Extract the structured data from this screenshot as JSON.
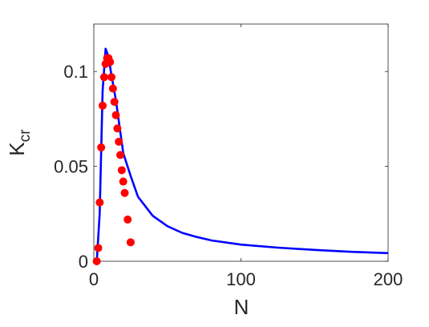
{
  "chart_data": {
    "type": "line",
    "xlabel": "N",
    "ylabel": {
      "main": "K",
      "subscript": "cr"
    },
    "xlim": [
      0,
      200
    ],
    "ylim": [
      0,
      0.125
    ],
    "x_ticks": [
      0,
      100,
      200
    ],
    "x_tick_labels": [
      "0",
      "100",
      "200"
    ],
    "y_ticks": [
      0,
      0.05,
      0.1
    ],
    "y_tick_labels": [
      "0",
      "0.05",
      "0.1"
    ],
    "grid": false,
    "series": [
      {
        "kind": "scatter",
        "color": "#ff0000",
        "points": [
          [
            2,
            0.0
          ],
          [
            3,
            0.007
          ],
          [
            4,
            0.031
          ],
          [
            5,
            0.06
          ],
          [
            6,
            0.082
          ],
          [
            7,
            0.097
          ],
          [
            8,
            0.104
          ],
          [
            9,
            0.107
          ],
          [
            10,
            0.107
          ],
          [
            11,
            0.105
          ],
          [
            12,
            0.097
          ],
          [
            13,
            0.091
          ],
          [
            14,
            0.084
          ],
          [
            15,
            0.077
          ],
          [
            16,
            0.07
          ],
          [
            17,
            0.063
          ],
          [
            18,
            0.056
          ],
          [
            19,
            0.048
          ],
          [
            20,
            0.042
          ],
          [
            21,
            0.036
          ],
          [
            23,
            0.022
          ],
          [
            25,
            0.01
          ]
        ]
      },
      {
        "kind": "line",
        "color": "#0000ff",
        "points": [
          [
            2,
            0.0
          ],
          [
            4,
            0.025
          ],
          [
            6,
            0.09
          ],
          [
            8,
            0.112
          ],
          [
            10,
            0.108
          ],
          [
            12,
            0.098
          ],
          [
            15,
            0.085
          ],
          [
            20,
            0.057
          ],
          [
            25,
            0.045
          ],
          [
            30,
            0.034
          ],
          [
            40,
            0.024
          ],
          [
            50,
            0.0185
          ],
          [
            60,
            0.015
          ],
          [
            70,
            0.0128
          ],
          [
            80,
            0.011
          ],
          [
            100,
            0.0088
          ],
          [
            125,
            0.0072
          ],
          [
            150,
            0.006
          ],
          [
            175,
            0.005
          ],
          [
            200,
            0.0043
          ]
        ]
      }
    ]
  }
}
